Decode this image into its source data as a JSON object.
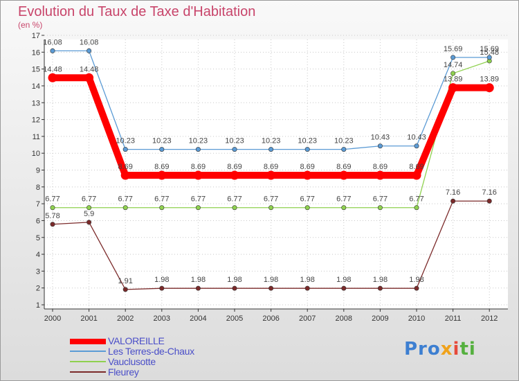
{
  "chart_data": {
    "type": "line",
    "title": "Evolution du Taux de Taxe d'Habitation",
    "subtitle": "(en %)",
    "xlabel": "",
    "ylabel": "(en %)",
    "ylim": [
      1,
      17
    ],
    "yticks": [
      1,
      2,
      3,
      4,
      5,
      6,
      7,
      8,
      9,
      10,
      11,
      12,
      13,
      14,
      15,
      16,
      17
    ],
    "categories": [
      "2000",
      "2001",
      "2002",
      "2003",
      "2004",
      "2005",
      "2006",
      "2007",
      "2008",
      "2009",
      "2010",
      "2011",
      "2012"
    ],
    "grid": true,
    "legend_position": "bottom-left",
    "series": [
      {
        "name": "VALOREILLE",
        "color": "#ff0000",
        "values": [
          14.48,
          14.48,
          8.69,
          8.69,
          8.69,
          8.69,
          8.69,
          8.69,
          8.69,
          8.69,
          8.69,
          13.89,
          13.89
        ],
        "labels": [
          "14.48",
          "14.48",
          "8.69",
          "8.69",
          "8.69",
          "8.69",
          "8.69",
          "8.69",
          "8.69",
          "8.69",
          "8.69",
          "13.89",
          "13.89"
        ]
      },
      {
        "name": "Les Terres-de-Chaux",
        "color": "#5b9bd5",
        "values": [
          16.08,
          16.08,
          10.23,
          10.23,
          10.23,
          10.23,
          10.23,
          10.23,
          10.23,
          10.43,
          10.43,
          15.69,
          15.69
        ],
        "labels": [
          "16.08",
          "16.08",
          "10.23",
          "10.23",
          "10.23",
          "10.23",
          "10.23",
          "10.23",
          "10.23",
          "10.43",
          "10.43",
          "15.69",
          "15.69"
        ]
      },
      {
        "name": "Vauclusotte",
        "color": "#8fd14f",
        "values": [
          6.77,
          6.77,
          6.77,
          6.77,
          6.77,
          6.77,
          6.77,
          6.77,
          6.77,
          6.77,
          6.77,
          14.74,
          15.48
        ],
        "labels": [
          "6.77",
          "6.77",
          "6.77",
          "6.77",
          "6.77",
          "6.77",
          "6.77",
          "6.77",
          "6.77",
          "6.77",
          "6.77",
          "14.74",
          "15.48"
        ]
      },
      {
        "name": "Fleurey",
        "color": "#7b2a2a",
        "values": [
          5.78,
          5.9,
          1.91,
          1.98,
          1.98,
          1.98,
          1.98,
          1.98,
          1.98,
          1.98,
          1.98,
          7.16,
          7.16
        ],
        "labels": [
          "5.78",
          "5.9",
          "1.91",
          "1.98",
          "1.98",
          "1.98",
          "1.98",
          "1.98",
          "1.98",
          "1.98",
          "1.98",
          "7.16",
          "7.16"
        ]
      }
    ]
  },
  "legend": {
    "items": [
      {
        "label": "VALOREILLE",
        "color": "#ff0000"
      },
      {
        "label": "Les Terres-de-Chaux",
        "color": "#5b9bd5"
      },
      {
        "label": "Vauclusotte",
        "color": "#8fd14f"
      },
      {
        "label": "Fleurey",
        "color": "#7b2a2a"
      }
    ]
  },
  "logo": {
    "text_1": "Pro",
    "text_2": "x",
    "text_3": "i",
    "text_4": "ti"
  }
}
